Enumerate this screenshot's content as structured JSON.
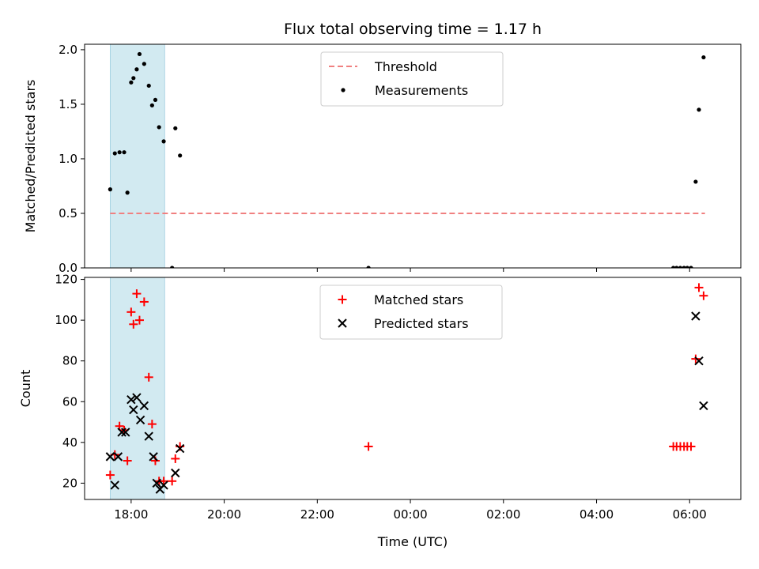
{
  "chart_data": {
    "type": "scatter",
    "title": "Flux total observing time = 1.17 h",
    "xlabel": "Time (UTC)",
    "x_ticks": [
      "18:00",
      "20:00",
      "22:00",
      "00:00",
      "02:00",
      "04:00",
      "06:00"
    ],
    "x_tick_hours": [
      18,
      20,
      22,
      24,
      26,
      28,
      30
    ],
    "x_range_hours": [
      17.0,
      31.1
    ],
    "shaded_interval_hours": [
      17.55,
      18.72
    ],
    "colors": {
      "threshold": "#f08080",
      "measurement": "#000000",
      "matched": "#ff0000",
      "predicted": "#000000",
      "shade": "#add8e6"
    },
    "panels": [
      {
        "ylabel": "Matched/Predicted stars",
        "ylim": [
          0,
          2.05
        ],
        "y_ticks": [
          0.0,
          0.5,
          1.0,
          1.5,
          2.0
        ],
        "y_tick_labels": [
          "0.0",
          "0.5",
          "1.0",
          "1.5",
          "2.0"
        ],
        "legend": [
          "Threshold",
          "Measurements"
        ],
        "threshold": {
          "name": "Threshold",
          "y": 0.5,
          "x_start": 17.55,
          "x_end": 30.33
        },
        "series": [
          {
            "name": "Measurements",
            "marker": "dot",
            "x": [
              17.55,
              17.65,
              17.75,
              17.85,
              17.92,
              18.0,
              18.05,
              18.12,
              18.18,
              18.28,
              18.38,
              18.45,
              18.52,
              18.6,
              18.7,
              18.88,
              18.95,
              19.05,
              23.1,
              29.65,
              29.72,
              29.8,
              29.88,
              29.95,
              30.03,
              30.13,
              30.2,
              30.3
            ],
            "y": [
              0.72,
              1.05,
              1.06,
              1.06,
              0.69,
              1.7,
              1.74,
              1.82,
              1.96,
              1.87,
              1.67,
              1.49,
              1.54,
              1.29,
              1.16,
              0.0,
              1.28,
              1.03,
              0.0,
              0.0,
              0.0,
              0.0,
              0.0,
              0.0,
              0.0,
              0.79,
              1.45,
              1.93
            ]
          }
        ]
      },
      {
        "ylabel": "Count",
        "ylim": [
          12,
          121
        ],
        "y_ticks": [
          20,
          40,
          60,
          80,
          100,
          120
        ],
        "y_tick_labels": [
          "20",
          "40",
          "60",
          "80",
          "100",
          "120"
        ],
        "legend": [
          "Matched stars",
          "Predicted stars"
        ],
        "series": [
          {
            "name": "Matched stars",
            "marker": "plus",
            "x": [
              17.55,
              17.65,
              17.75,
              17.85,
              17.92,
              18.0,
              18.05,
              18.12,
              18.18,
              18.28,
              18.38,
              18.45,
              18.52,
              18.6,
              18.7,
              18.88,
              18.95,
              19.05,
              23.1,
              29.65,
              29.72,
              29.8,
              29.88,
              29.95,
              30.03,
              30.13,
              30.2,
              30.3
            ],
            "y": [
              24,
              34,
              48,
              46,
              31,
              104,
              98,
              113,
              100,
              109,
              72,
              49,
              31,
              21,
              21,
              21,
              32,
              38,
              38,
              38,
              38,
              38,
              38,
              38,
              38,
              81,
              116,
              112
            ]
          },
          {
            "name": "Predicted stars",
            "marker": "x",
            "x": [
              17.55,
              17.65,
              17.72,
              17.8,
              17.88,
              18.0,
              18.05,
              18.12,
              18.2,
              18.28,
              18.38,
              18.48,
              18.55,
              18.62,
              18.7,
              18.95,
              19.05,
              30.13,
              30.2,
              30.3
            ],
            "y": [
              33,
              19,
              33,
              45,
              45,
              61,
              56,
              62,
              51,
              58,
              43,
              33,
              20,
              17,
              19,
              25,
              37,
              102,
              80,
              58
            ]
          }
        ]
      }
    ]
  }
}
